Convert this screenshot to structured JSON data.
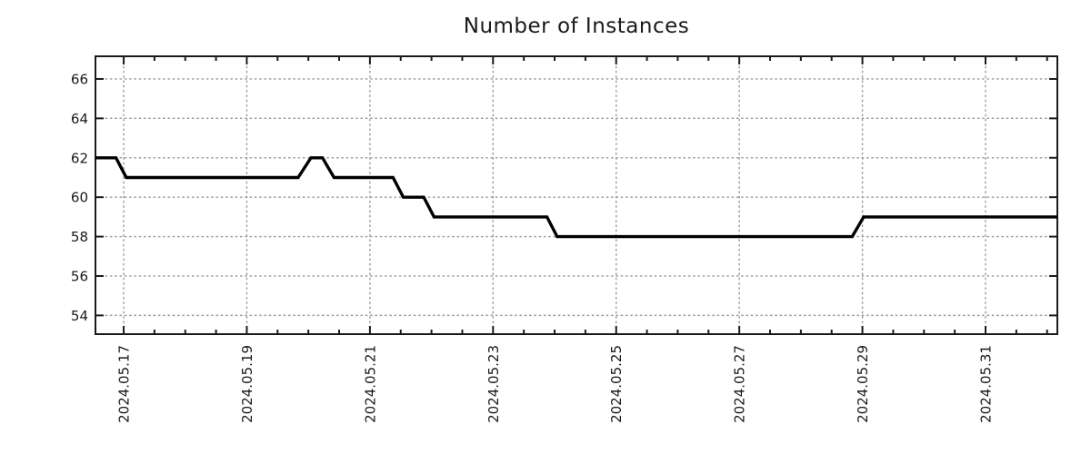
{
  "chart_data": {
    "type": "line",
    "title": "Number of Instances",
    "legend": null,
    "x_axis": {
      "type": "time",
      "min": "2024-05-16 13:00",
      "max": "2024-06-01 04:00",
      "minor_tick_interval_hours": 12,
      "major_tick_interval_days": 2,
      "label_rotation_deg": -90,
      "major_ticks": [
        {
          "t": "2024-05-17 00:00",
          "label": "2024.05.17"
        },
        {
          "t": "2024-05-19 00:00",
          "label": "2024.05.19"
        },
        {
          "t": "2024-05-21 00:00",
          "label": "2024.05.21"
        },
        {
          "t": "2024-05-23 00:00",
          "label": "2024.05.23"
        },
        {
          "t": "2024-05-25 00:00",
          "label": "2024.05.25"
        },
        {
          "t": "2024-05-27 00:00",
          "label": "2024.05.27"
        },
        {
          "t": "2024-05-29 00:00",
          "label": "2024.05.29"
        },
        {
          "t": "2024-05-31 00:00",
          "label": "2024.05.31"
        }
      ]
    },
    "y_axis": {
      "min": 53.05,
      "max": 67.15,
      "ticks": [
        54,
        56,
        58,
        60,
        62,
        64,
        66
      ]
    },
    "grid": {
      "show": true,
      "style": "dotted",
      "on": "major",
      "color": "#999999"
    },
    "series": [
      {
        "name": "instances",
        "color": "#000000",
        "points": [
          [
            "2024-05-16 13:00",
            62
          ],
          [
            "2024-05-16 21:00",
            62
          ],
          [
            "2024-05-17 01:00",
            61
          ],
          [
            "2024-05-19 20:00",
            61
          ],
          [
            "2024-05-20 01:00",
            62
          ],
          [
            "2024-05-20 05:30",
            62
          ],
          [
            "2024-05-20 10:00",
            61
          ],
          [
            "2024-05-21 09:00",
            61
          ],
          [
            "2024-05-21 13:00",
            60
          ],
          [
            "2024-05-21 21:00",
            60
          ],
          [
            "2024-05-22 01:00",
            59
          ],
          [
            "2024-05-23 21:00",
            59
          ],
          [
            "2024-05-24 01:00",
            58
          ],
          [
            "2024-05-28 20:00",
            58
          ],
          [
            "2024-05-29 00:30",
            59
          ],
          [
            "2024-06-01 04:00",
            59
          ]
        ]
      }
    ]
  },
  "colors": {
    "background": "#ffffff",
    "text": "#1a1a1a",
    "axis": "#1a1a1a",
    "grid": "#999999",
    "line": "#000000"
  }
}
